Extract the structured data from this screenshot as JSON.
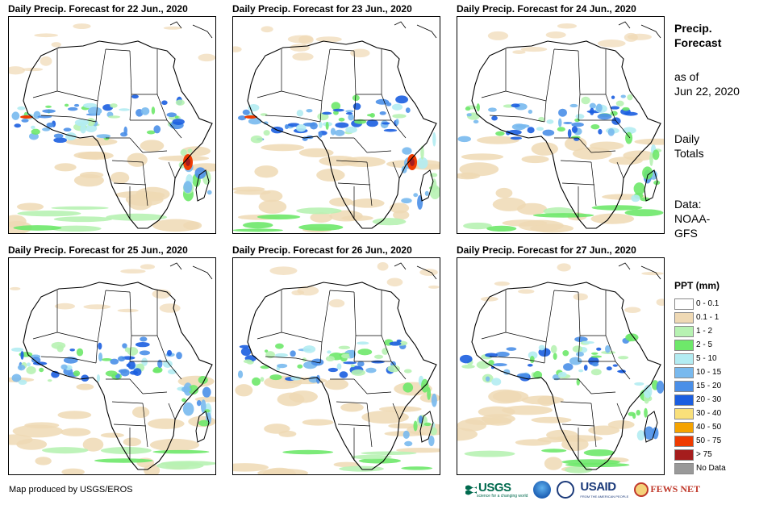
{
  "panels": [
    {
      "title": "Daily Precip. Forecast for 22 Jun., 2020"
    },
    {
      "title": "Daily Precip. Forecast for 23 Jun., 2020"
    },
    {
      "title": "Daily Precip. Forecast for 24 Jun., 2020"
    },
    {
      "title": "Daily Precip. Forecast for 25 Jun., 2020"
    },
    {
      "title": "Daily Precip. Forecast for 26 Jun., 2020"
    },
    {
      "title": "Daily Precip. Forecast for 27 Jun., 2020"
    }
  ],
  "sidebar": {
    "heading_line1": "Precip.",
    "heading_line2": "Forecast",
    "asof_line1": "as of",
    "asof_line2": "Jun 22, 2020",
    "totals_line1": "Daily",
    "totals_line2": "Totals",
    "data_line1": "Data:",
    "data_line2": "NOAA-",
    "data_line3": "GFS"
  },
  "legend": {
    "title": "PPT (mm)",
    "items": [
      {
        "label": "0 - 0.1",
        "color": "#ffffff"
      },
      {
        "label": "0.1 - 1",
        "color": "#efd9b4"
      },
      {
        "label": "1 - 2",
        "color": "#b7f2b2"
      },
      {
        "label": "2 - 5",
        "color": "#6ee86a"
      },
      {
        "label": "5 - 10",
        "color": "#b3ecf2"
      },
      {
        "label": "10 - 15",
        "color": "#78b9ee"
      },
      {
        "label": "15 - 20",
        "color": "#4a8fe8"
      },
      {
        "label": "20 - 30",
        "color": "#1b5ee0"
      },
      {
        "label": "30 - 40",
        "color": "#f9e07a"
      },
      {
        "label": "40 - 50",
        "color": "#f5a300"
      },
      {
        "label": "50 - 75",
        "color": "#ee3b00"
      },
      {
        "label": "> 75",
        "color": "#a51d1d"
      },
      {
        "label": "No Data",
        "color": "#999999"
      }
    ]
  },
  "footer": {
    "credit": "Map produced by USGS/EROS",
    "logos": {
      "usgs": "USGS",
      "usgs_tagline": "science for a changing world",
      "usaid": "USAID",
      "usaid_tagline": "FROM THE AMERICAN PEOPLE",
      "fews": "FEWS NET"
    }
  }
}
